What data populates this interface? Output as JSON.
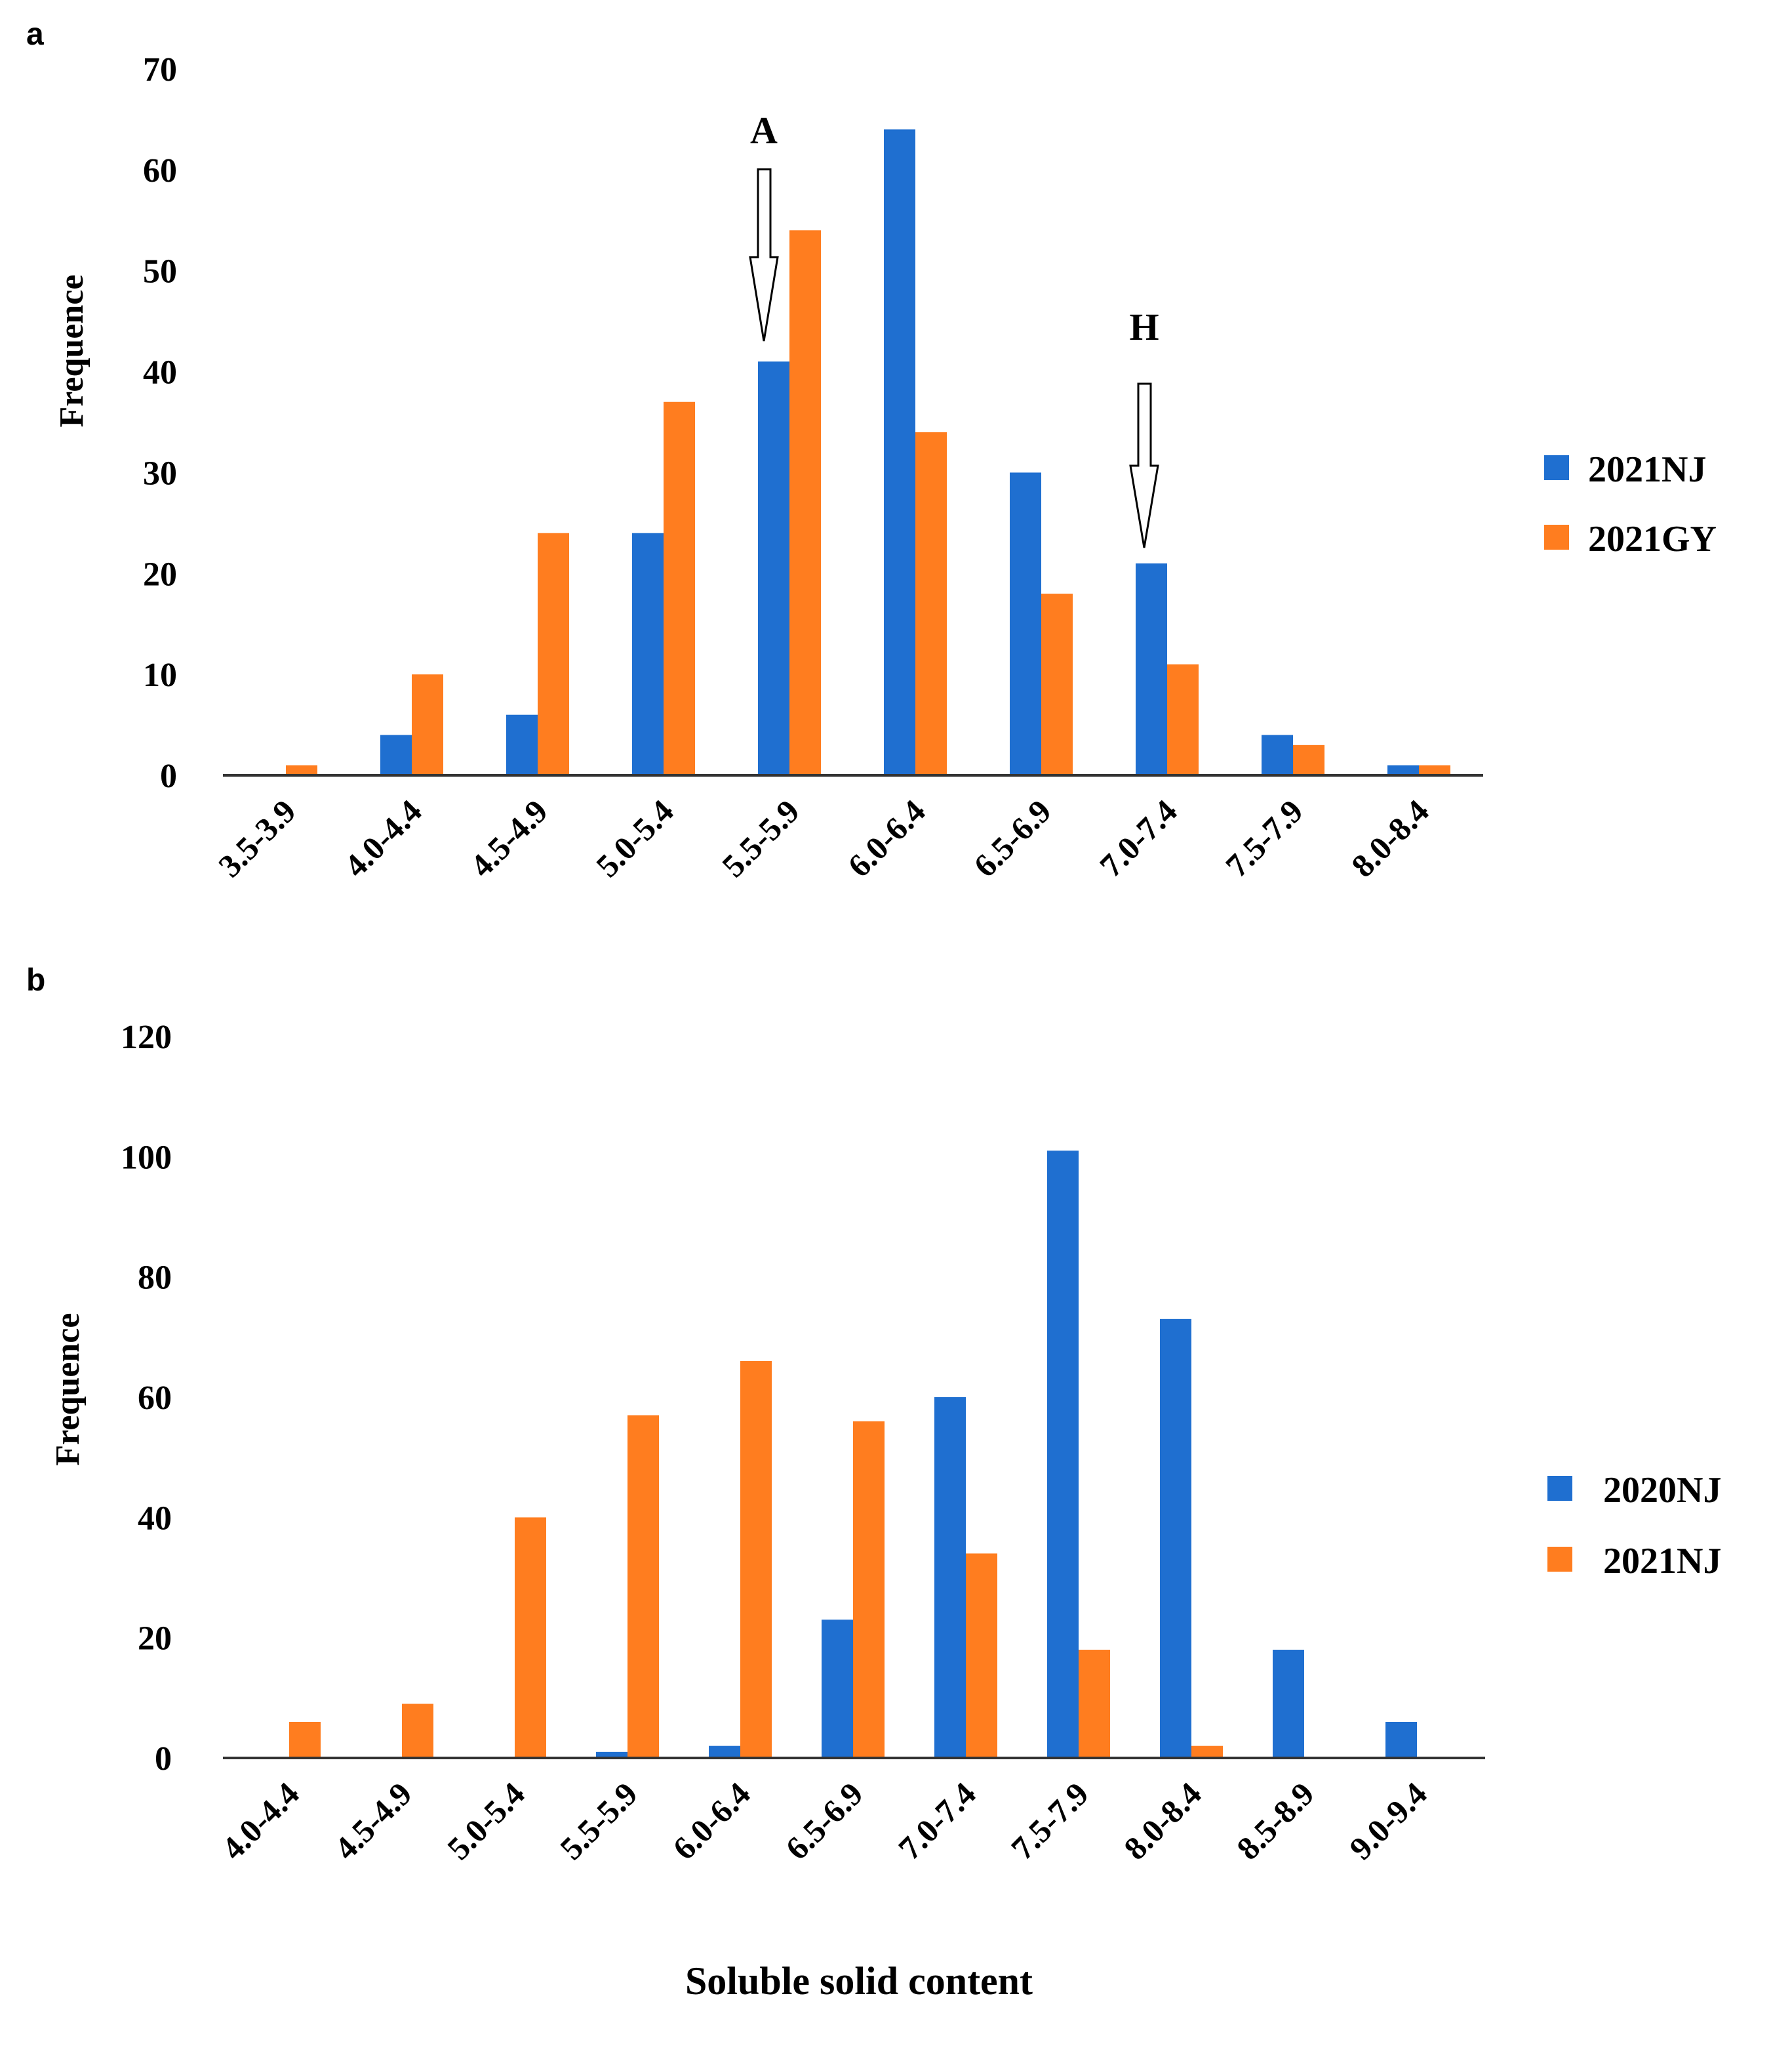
{
  "xlabel_shared": "Soluble solid content",
  "colors": {
    "series1": "#1f6fd0",
    "series2": "#ff7d1f",
    "axis": "#333333"
  },
  "chart_data": [
    {
      "panel": "a",
      "type": "bar",
      "ylabel": "Frequence",
      "xlabel": "",
      "ylim": [
        0,
        70
      ],
      "yticks": [
        0,
        10,
        20,
        30,
        40,
        50,
        60,
        70
      ],
      "categories": [
        "3.5-3.9",
        "4.0-4.4",
        "4.5-4.9",
        "5.0-5.4",
        "5.5-5.9",
        "6.0-6.4",
        "6.5-6.9",
        "7.0-7.4",
        "7.5-7.9",
        "8.0-8.4"
      ],
      "series": [
        {
          "name": "2021NJ",
          "values": [
            0,
            4,
            6,
            24,
            41,
            64,
            30,
            21,
            4,
            1
          ]
        },
        {
          "name": "2021GY",
          "values": [
            1,
            10,
            24,
            37,
            54,
            34,
            18,
            11,
            3,
            1
          ]
        }
      ],
      "legend": "right",
      "annotations": [
        {
          "text": "A",
          "category": "5.5-5.9"
        },
        {
          "text": "H",
          "category": "7.0-7.4"
        }
      ]
    },
    {
      "panel": "b",
      "type": "bar",
      "ylabel": "Frequence",
      "xlabel": "Soluble solid content",
      "ylim": [
        0,
        120
      ],
      "yticks": [
        0,
        20,
        40,
        60,
        80,
        100,
        120
      ],
      "categories": [
        "4.0-4.4",
        "4.5-4.9",
        "5.0-5.4",
        "5.5-5.9",
        "6.0-6.4",
        "6.5-6.9",
        "7.0-7.4",
        "7.5-7.9",
        "8.0-8.4",
        "8.5-8.9",
        "9.0-9.4"
      ],
      "series": [
        {
          "name": "2020NJ",
          "values": [
            0,
            0,
            0,
            1,
            2,
            23,
            60,
            101,
            73,
            18,
            6
          ]
        },
        {
          "name": "2021NJ",
          "values": [
            6,
            9,
            40,
            57,
            66,
            56,
            34,
            18,
            2,
            0,
            0
          ]
        }
      ],
      "legend": "right",
      "annotations": []
    }
  ]
}
